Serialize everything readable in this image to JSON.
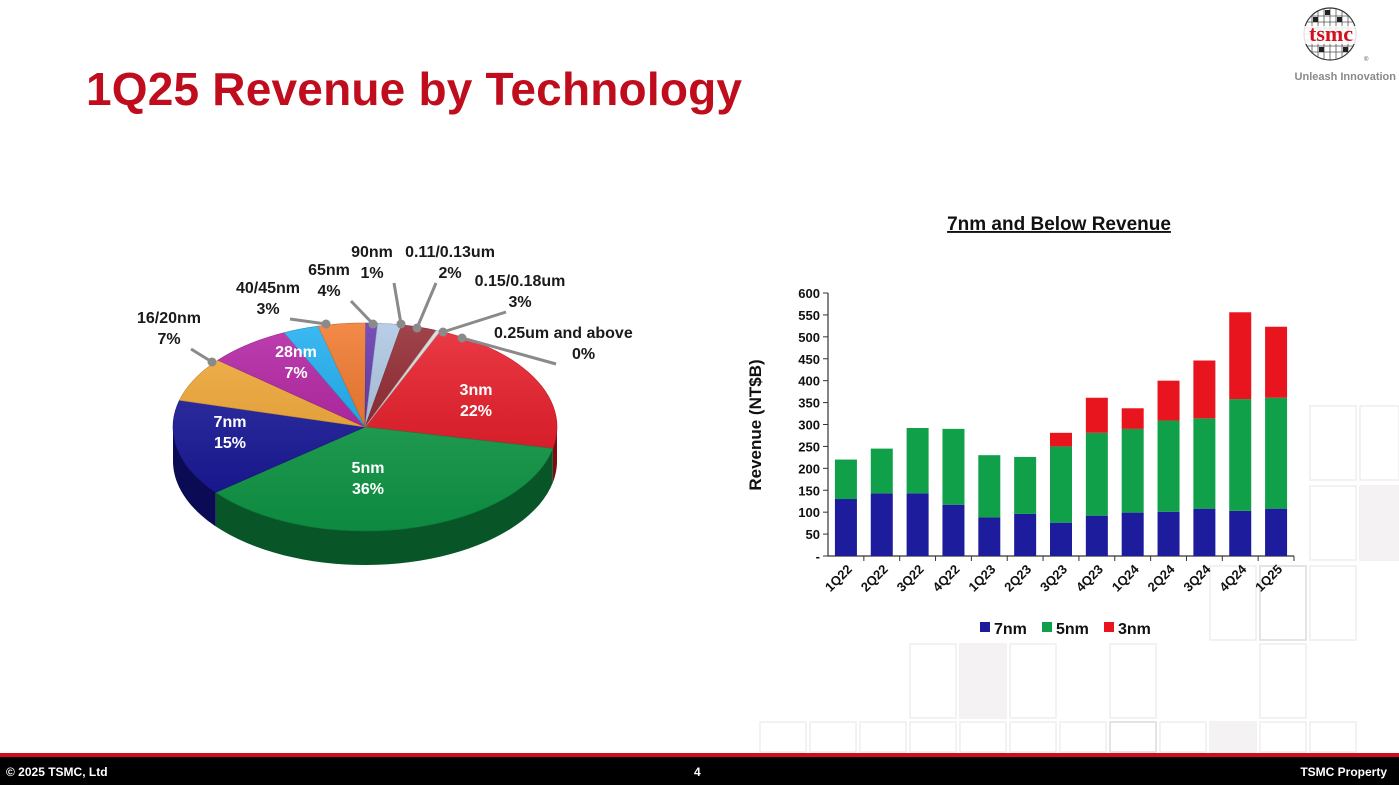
{
  "slide": {
    "title": "1Q25 Revenue by Technology",
    "logo_text": "tsmc",
    "logo_tagline": "Unleash Innovation",
    "logo_icon": "tsmc-wafer-logo-icon"
  },
  "footer": {
    "copyright": "© 2025 TSMC, Ltd",
    "page": "4",
    "property": "TSMC Property"
  },
  "colors": {
    "title": "#c00d1e",
    "bar_7nm": "#1c1c9c",
    "bar_5nm": "#10a049",
    "bar_3nm": "#e8141e"
  },
  "chart_data": [
    {
      "type": "pie",
      "title": "",
      "slices": [
        {
          "label": "3nm",
          "pct": "22%",
          "value": 22,
          "color": "#e8121f"
        },
        {
          "label": "5nm",
          "pct": "36%",
          "value": 36,
          "color": "#0f9d48"
        },
        {
          "label": "7nm",
          "pct": "15%",
          "value": 15,
          "color": "#14149a"
        },
        {
          "label": "16/20nm",
          "pct": "7%",
          "value": 7,
          "color": "#f3a62e"
        },
        {
          "label": "28nm",
          "pct": "7%",
          "value": 7,
          "color": "#b0179f"
        },
        {
          "label": "40/45nm",
          "pct": "3%",
          "value": 3,
          "color": "#12aaf0"
        },
        {
          "label": "65nm",
          "pct": "4%",
          "value": 4,
          "color": "#f07020"
        },
        {
          "label": "90nm",
          "pct": "1%",
          "value": 1,
          "color": "#5a2aa8"
        },
        {
          "label": "0.11/0.13um",
          "pct": "2%",
          "value": 2,
          "color": "#a9c4e2"
        },
        {
          "label": "0.15/0.18um",
          "pct": "3%",
          "value": 3,
          "color": "#8c1b24"
        },
        {
          "label": "0.25um and above",
          "pct": "0%",
          "value": 0,
          "color": "#d9d9d9"
        }
      ]
    },
    {
      "type": "bar",
      "stacked": true,
      "title": "7nm and Below Revenue",
      "ylabel": "Revenue (NT$B)",
      "ylim": [
        0,
        600
      ],
      "yticks": [
        "-",
        "50",
        "100",
        "150",
        "200",
        "250",
        "300",
        "350",
        "400",
        "450",
        "500",
        "550",
        "600"
      ],
      "categories": [
        "1Q22",
        "2Q22",
        "3Q22",
        "4Q22",
        "1Q23",
        "2Q23",
        "3Q23",
        "4Q23",
        "1Q24",
        "2Q24",
        "3Q24",
        "4Q24",
        "1Q25"
      ],
      "series": [
        {
          "name": "7nm",
          "color": "#1c1c9c",
          "values": [
            130,
            143,
            143,
            117,
            88,
            96,
            76,
            92,
            99,
            101,
            108,
            103,
            108
          ]
        },
        {
          "name": "5nm",
          "color": "#10a049",
          "values": [
            90,
            102,
            149,
            173,
            142,
            130,
            174,
            189,
            191,
            208,
            206,
            255,
            253
          ]
        },
        {
          "name": "3nm",
          "color": "#e8141e",
          "values": [
            0,
            0,
            0,
            0,
            0,
            0,
            31,
            80,
            47,
            91,
            132,
            198,
            162
          ]
        }
      ],
      "legend": "bottom"
    }
  ]
}
